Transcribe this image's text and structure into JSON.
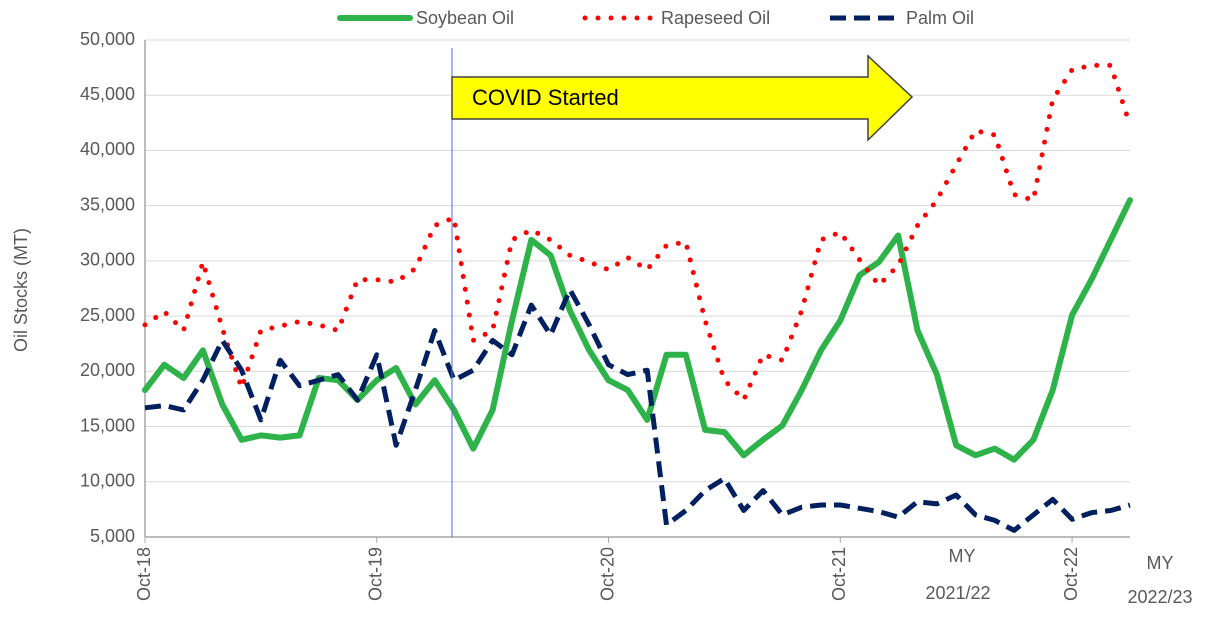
{
  "chart_data": {
    "type": "line",
    "y_label": "Oil Stocks (MT)",
    "annotations": [
      "COVID Started",
      "MY 2021/22",
      "MY 2022/23"
    ],
    "categories": [
      "Oct-18",
      null,
      null,
      null,
      null,
      null,
      null,
      null,
      null,
      null,
      null,
      null,
      "Oct-19",
      null,
      null,
      null,
      null,
      null,
      null,
      null,
      null,
      null,
      null,
      null,
      "Oct-20",
      null,
      null,
      null,
      null,
      null,
      null,
      null,
      null,
      null,
      null,
      null,
      "Oct-21",
      null,
      null,
      null,
      null,
      null,
      null,
      null,
      null,
      null,
      null,
      null,
      "Oct-22",
      null,
      null,
      null
    ],
    "series": [
      {
        "name": "Soybean Oil",
        "color": "#2eb34a",
        "style": "solid",
        "values": [
          18300,
          20600,
          19400,
          21900,
          17000,
          13800,
          14200,
          14000,
          14200,
          19400,
          19200,
          17400,
          19200,
          20300,
          17000,
          19200,
          16500,
          13000,
          16500,
          24600,
          31900,
          30500,
          25500,
          21900,
          19200,
          18300,
          15600,
          21500,
          21500,
          14700,
          14500,
          12400,
          13800,
          15100,
          18300,
          21900,
          24600,
          28700,
          29900,
          32300,
          23700,
          19700,
          13300,
          12400,
          13000,
          12000,
          13800,
          18300,
          25100,
          28300,
          31900,
          35500
        ]
      },
      {
        "name": "Rapeseed Oil",
        "color": "#ff0000",
        "style": "dotted",
        "values": [
          24200,
          25400,
          23700,
          29900,
          23900,
          18500,
          23700,
          24100,
          24500,
          24200,
          23700,
          28300,
          28300,
          28100,
          29300,
          33200,
          33900,
          22800,
          23700,
          31900,
          32800,
          31900,
          30500,
          29900,
          29200,
          30300,
          29200,
          31400,
          31700,
          24600,
          19200,
          17400,
          21500,
          21000,
          25500,
          31900,
          32600,
          30100,
          27800,
          29600,
          33200,
          35500,
          38700,
          41800,
          41400,
          36000,
          35500,
          44600,
          47300,
          47700,
          47700,
          42300
        ]
      },
      {
        "name": "Palm Oil",
        "color": "#002060",
        "style": "dashed",
        "values": [
          16700,
          16900,
          16500,
          19200,
          22800,
          20100,
          15600,
          21000,
          18700,
          19200,
          19700,
          17400,
          21500,
          13300,
          18300,
          23700,
          19200,
          20100,
          22800,
          21500,
          26000,
          23300,
          27400,
          24200,
          20600,
          19700,
          20100,
          6100,
          7400,
          9200,
          10300,
          7400,
          9200,
          7000,
          7700,
          7900,
          7900,
          7600,
          7300,
          6800,
          8200,
          8000,
          8800,
          7000,
          6500,
          5600,
          7000,
          8400,
          6600,
          7200,
          7400,
          7900
        ]
      }
    ],
    "ylim": [
      5000,
      50000
    ],
    "yticks": [
      {
        "value": 5000,
        "label": "5,000"
      },
      {
        "value": 10000,
        "label": "10,000"
      },
      {
        "value": 15000,
        "label": "15,000"
      },
      {
        "value": 20000,
        "label": "20,000"
      },
      {
        "value": 25000,
        "label": "25,000"
      },
      {
        "value": 30000,
        "label": "30,000"
      },
      {
        "value": 35000,
        "label": "35,000"
      },
      {
        "value": 40000,
        "label": "40,000"
      },
      {
        "value": 45000,
        "label": "45,000"
      },
      {
        "value": 50000,
        "label": "50,000"
      }
    ],
    "grid": true
  }
}
